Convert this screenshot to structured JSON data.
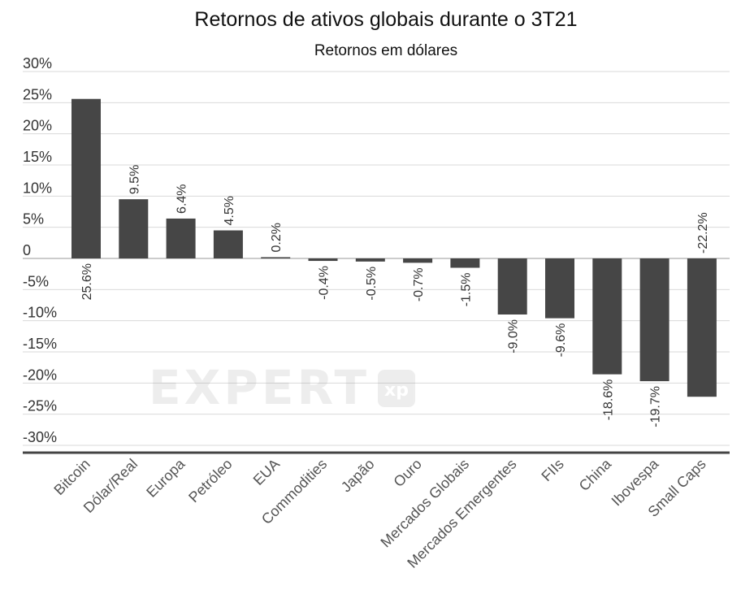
{
  "chart_data": {
    "type": "bar",
    "title": "Retornos de ativos globais durante o 3T21",
    "subtitle": "Retornos em dólares",
    "categories": [
      "Bitcoin",
      "Dólar/Real",
      "Europa",
      "Petróleo",
      "EUA",
      "Commodities",
      "Japão",
      "Ouro",
      "Mercados Globais",
      "Mercados Emergentes",
      "FIIs",
      "China",
      "Ibovespa",
      "Small Caps"
    ],
    "values": [
      25.6,
      9.5,
      6.4,
      4.5,
      0.2,
      -0.4,
      -0.5,
      -0.7,
      -1.5,
      -9.0,
      -9.6,
      -18.6,
      -19.7,
      -22.2
    ],
    "labels": [
      "25.6%",
      "9.5%",
      "6.4%",
      "4.5%",
      "0.2%",
      "-0.4%",
      "-0.5%",
      "-0.7%",
      "-1.5%",
      "-9.0%",
      "-9.6%",
      "-18.6%",
      "-19.7%",
      "-22.2%"
    ],
    "yticks": [
      30,
      25,
      20,
      15,
      10,
      5,
      0,
      -5,
      -10,
      -15,
      -20,
      -25,
      -30
    ],
    "ytick_labels": [
      "30%",
      "25%",
      "20%",
      "15%",
      "10%",
      "5%",
      "0",
      "-5%",
      "-10%",
      "-15%",
      "-20%",
      "-25%",
      "-30%"
    ],
    "ylim": [
      -30,
      30
    ],
    "xlabel": "",
    "ylabel": "",
    "grid": true,
    "bar_color": "#464646",
    "grid_color": "#d9d9d9"
  },
  "watermark": {
    "text": "EXPERT",
    "badge": "xp"
  }
}
